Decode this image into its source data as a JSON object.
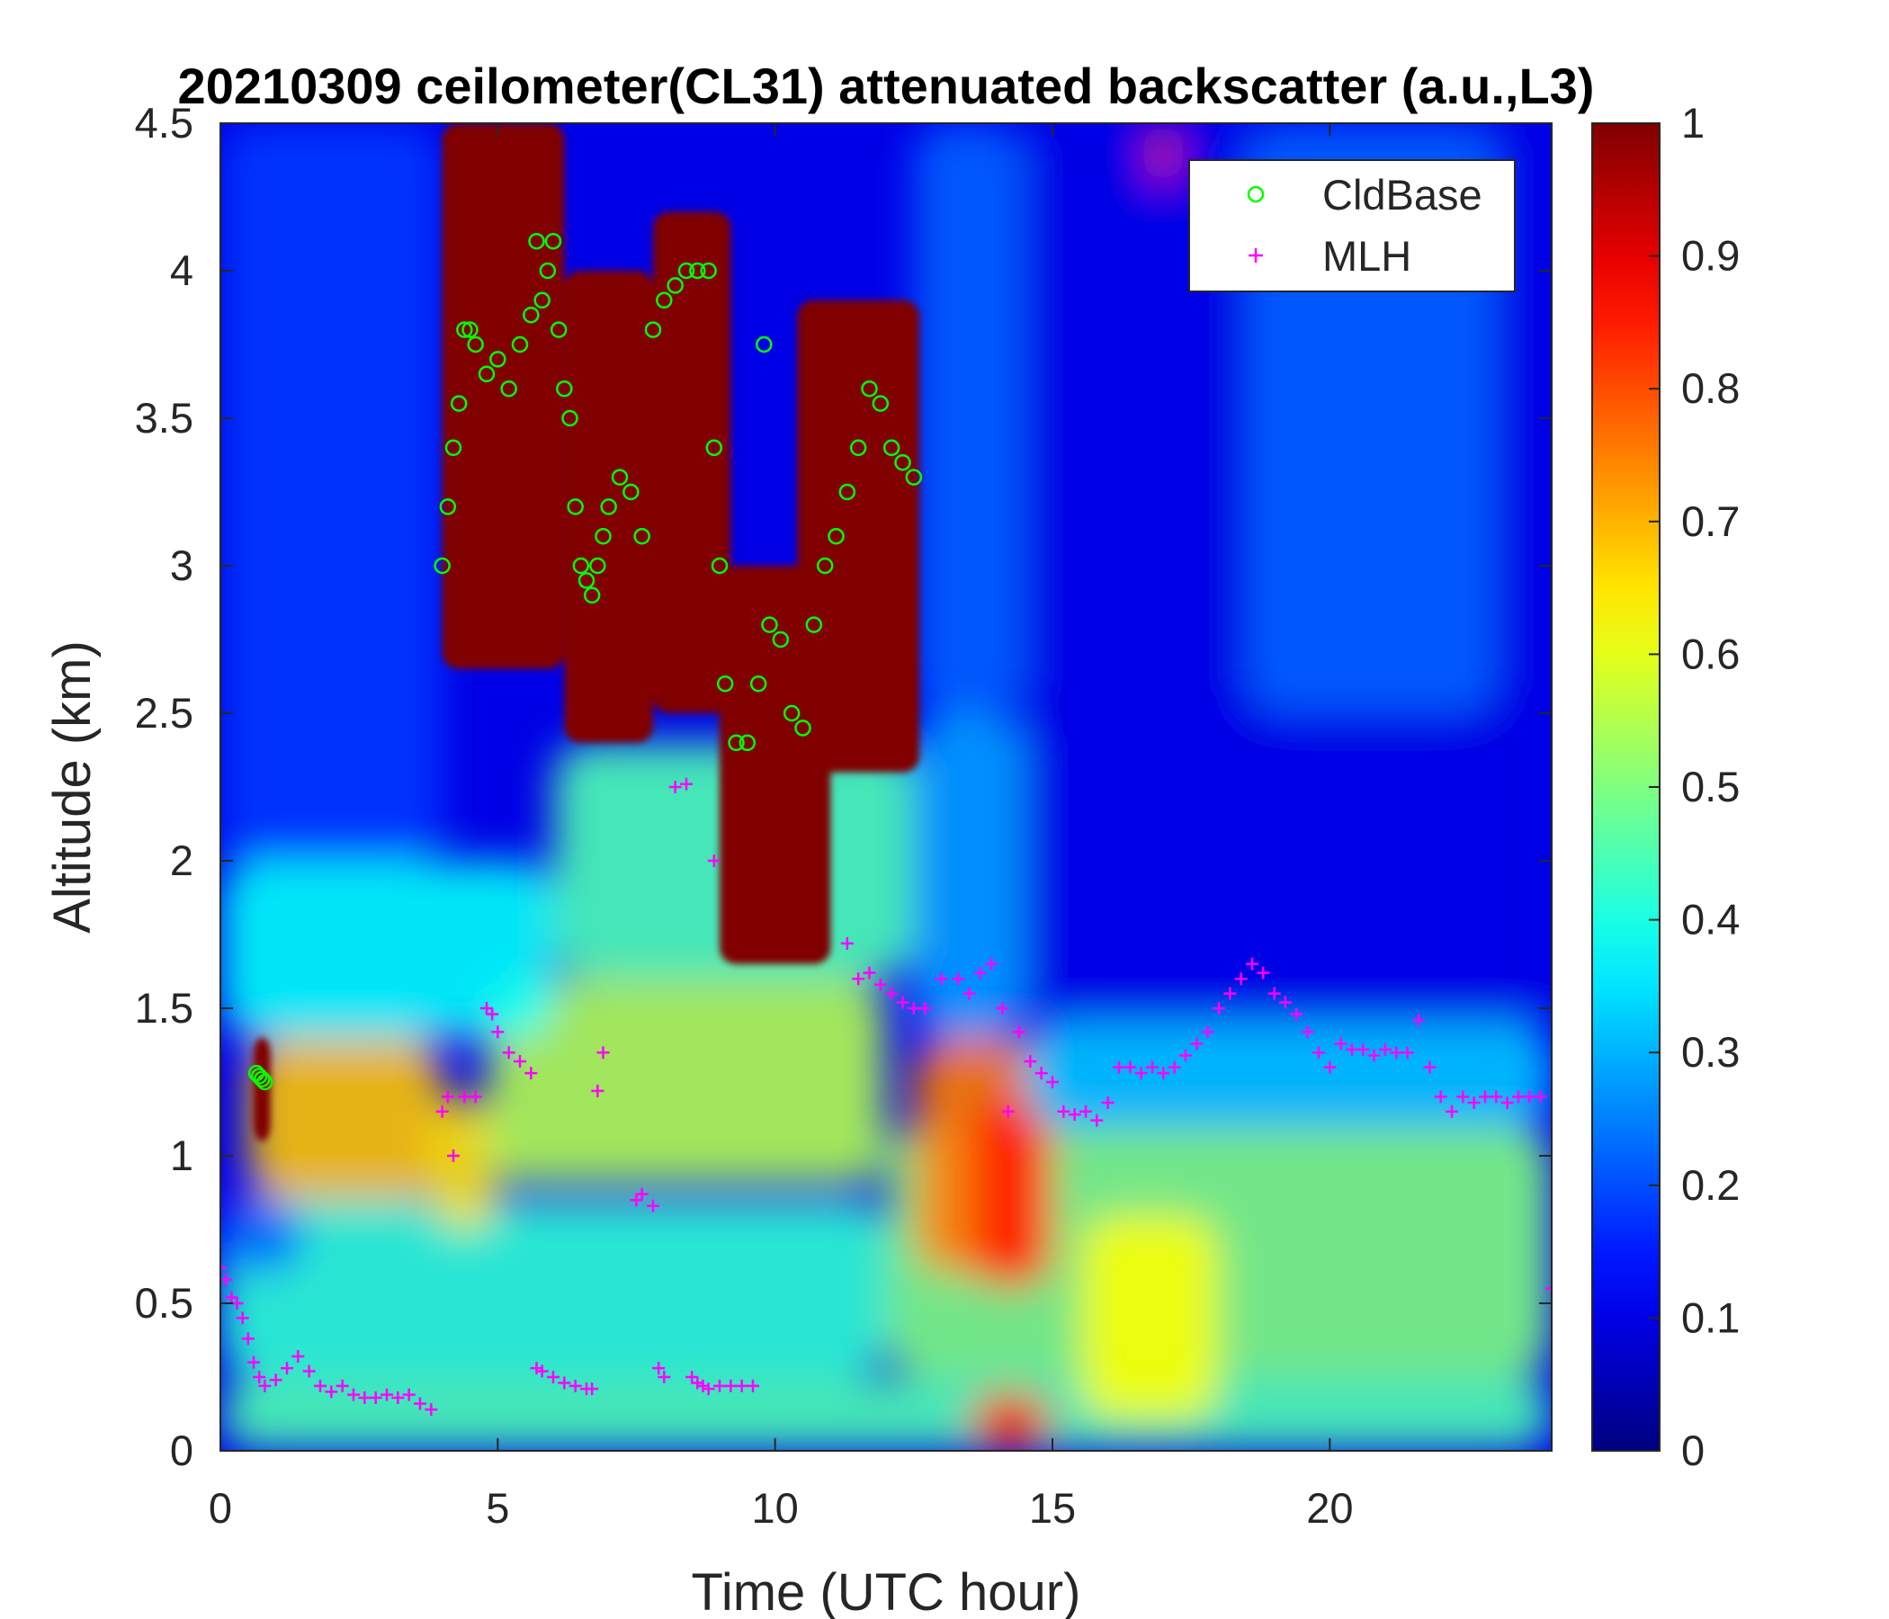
{
  "chart_data": {
    "type": "heatmap",
    "title": "20210309 ceilometer(CL31) attenuated backscatter (a.u.,L3)",
    "xlabel": "Time (UTC hour)",
    "ylabel": "Altitude (km)",
    "xlim": [
      0,
      24
    ],
    "ylim": [
      0,
      4.5
    ],
    "x_ticks": [
      0,
      5,
      10,
      15,
      20
    ],
    "x_tick_labels": [
      "0",
      "5",
      "10",
      "15",
      "20"
    ],
    "y_ticks": [
      0,
      0.5,
      1,
      1.5,
      2,
      2.5,
      3,
      3.5,
      4,
      4.5
    ],
    "y_tick_labels": [
      "0",
      "0.5",
      "1",
      "1.5",
      "2",
      "2.5",
      "3",
      "3.5",
      "4",
      "4.5"
    ],
    "colorbar": {
      "colormap": "jet",
      "range": [
        0,
        1
      ],
      "ticks": [
        0,
        0.1,
        0.2,
        0.3,
        0.4,
        0.5,
        0.6,
        0.7,
        0.8,
        0.9,
        1
      ],
      "tick_labels": [
        "0",
        "0.1",
        "0.2",
        "0.3",
        "0.4",
        "0.5",
        "0.6",
        "0.7",
        "0.8",
        "0.9",
        "1"
      ]
    },
    "grid": false,
    "legend": {
      "placement": "top-right",
      "entries": [
        {
          "label": "CldBase",
          "marker": "circle",
          "color": "#00ff00"
        },
        {
          "label": "MLH",
          "marker": "plus",
          "color": "#ff00ff"
        }
      ]
    },
    "features": [
      {
        "t0": 0,
        "t1": 24,
        "z0": 0,
        "z1": 0.25,
        "v": 0.45
      },
      {
        "t0": 0,
        "t1": 12,
        "z0": 0.25,
        "z1": 0.85,
        "v": 0.42
      },
      {
        "t0": 0,
        "t1": 1.5,
        "z0": 0.6,
        "z1": 0.85,
        "v": 0.22
      },
      {
        "t0": 12,
        "t1": 24,
        "z0": 0.25,
        "z1": 1.1,
        "v": 0.5
      },
      {
        "t0": 0.5,
        "t1": 4,
        "z0": 0.85,
        "z1": 1.4,
        "v": 0.68
      },
      {
        "t0": 3.8,
        "t1": 5,
        "z0": 0.75,
        "z1": 1.2,
        "v": 0.65
      },
      {
        "t0": 4.8,
        "t1": 12,
        "z0": 0.9,
        "z1": 1.6,
        "v": 0.55
      },
      {
        "t0": 12.5,
        "t1": 15,
        "z0": 0.6,
        "z1": 1.4,
        "v": 0.75
      },
      {
        "t0": 13.5,
        "t1": 15,
        "z0": 0.55,
        "z1": 1.2,
        "v": 0.85
      },
      {
        "t0": 13.5,
        "t1": 15,
        "z0": 0,
        "z1": 0.2,
        "v": 0.85
      },
      {
        "t0": 15.5,
        "t1": 18,
        "z0": 0.1,
        "z1": 0.8,
        "v": 0.62
      },
      {
        "t0": 0,
        "t1": 6,
        "z0": 1.4,
        "z1": 2.0,
        "v": 0.38
      },
      {
        "t0": 6,
        "t1": 12.5,
        "z0": 1.6,
        "z1": 2.4,
        "v": 0.45
      },
      {
        "t0": 12.5,
        "t1": 14.5,
        "z0": 1.4,
        "z1": 2.5,
        "v": 0.28
      },
      {
        "t0": 14.5,
        "t1": 24,
        "z0": 1.1,
        "z1": 1.45,
        "v": 0.32
      },
      {
        "t0": 0,
        "t1": 4,
        "z0": 2.0,
        "z1": 4.5,
        "v": 0.18
      },
      {
        "t0": 12.5,
        "t1": 14.5,
        "z0": 2.5,
        "z1": 4.5,
        "v": 0.22
      },
      {
        "t0": 14.5,
        "t1": 24,
        "z0": 1.45,
        "z1": 4.5,
        "v": 0.1
      },
      {
        "t0": 18.5,
        "t1": 23,
        "z0": 2.5,
        "z1": 4.5,
        "v": 0.22
      },
      {
        "t0": 0.6,
        "t1": 0.9,
        "z0": 1.05,
        "z1": 1.4,
        "v": 1.0
      },
      {
        "t0": 4,
        "t1": 6.2,
        "z0": 2.65,
        "z1": 4.5,
        "v": 1.0
      },
      {
        "t0": 6.2,
        "t1": 7.8,
        "z0": 2.4,
        "z1": 4.0,
        "v": 1.0
      },
      {
        "t0": 7.8,
        "t1": 9.2,
        "z0": 2.5,
        "z1": 4.2,
        "v": 1.0
      },
      {
        "t0": 9.0,
        "t1": 11,
        "z0": 1.65,
        "z1": 3.0,
        "v": 1.0
      },
      {
        "t0": 10.4,
        "t1": 12.6,
        "z0": 2.3,
        "z1": 3.9,
        "v": 1.0
      },
      {
        "t0": 16.8,
        "t1": 17.2,
        "z0": 4.3,
        "z1": 4.5,
        "v": 0.85
      }
    ],
    "series": [
      {
        "name": "CldBase",
        "marker": "circle",
        "color": "#00ff00",
        "x": [
          0.65,
          0.7,
          0.75,
          0.8,
          4.0,
          4.1,
          4.2,
          4.3,
          4.4,
          4.5,
          4.6,
          4.8,
          5.0,
          5.2,
          5.4,
          5.6,
          5.7,
          5.8,
          5.9,
          6.0,
          6.1,
          6.2,
          6.3,
          6.4,
          6.5,
          6.6,
          6.7,
          6.8,
          6.9,
          7.0,
          7.2,
          7.4,
          7.6,
          7.8,
          8.0,
          8.2,
          8.4,
          8.6,
          8.8,
          8.9,
          9.0,
          9.1,
          9.3,
          9.5,
          9.7,
          9.9,
          10.1,
          10.3,
          10.5,
          10.7,
          10.9,
          11.1,
          11.3,
          11.5,
          11.7,
          11.9,
          12.1,
          12.3,
          12.5,
          9.8
        ],
        "y": [
          1.28,
          1.27,
          1.26,
          1.25,
          3.0,
          3.2,
          3.4,
          3.55,
          3.8,
          3.8,
          3.75,
          3.65,
          3.7,
          3.6,
          3.75,
          3.85,
          4.1,
          3.9,
          4.0,
          4.1,
          3.8,
          3.6,
          3.5,
          3.2,
          3.0,
          2.95,
          2.9,
          3.0,
          3.1,
          3.2,
          3.3,
          3.25,
          3.1,
          3.8,
          3.9,
          3.95,
          4.0,
          4.0,
          4.0,
          3.4,
          3.0,
          2.6,
          2.4,
          2.4,
          2.6,
          2.8,
          2.75,
          2.5,
          2.45,
          2.8,
          3.0,
          3.1,
          3.25,
          3.4,
          3.6,
          3.55,
          3.4,
          3.35,
          3.3,
          3.75
        ]
      },
      {
        "name": "MLH",
        "marker": "plus",
        "color": "#ff00ff",
        "x": [
          0.0,
          0.1,
          0.2,
          0.3,
          0.4,
          0.5,
          0.6,
          0.7,
          0.8,
          1.0,
          1.2,
          1.4,
          1.6,
          1.8,
          2.0,
          2.2,
          2.4,
          2.6,
          2.8,
          3.0,
          3.2,
          3.4,
          3.6,
          3.8,
          4.0,
          4.1,
          4.2,
          4.4,
          4.6,
          4.8,
          4.9,
          5.0,
          5.2,
          5.4,
          5.6,
          5.7,
          5.8,
          6.0,
          6.2,
          6.4,
          6.6,
          6.7,
          6.8,
          6.9,
          7.5,
          7.6,
          7.8,
          7.9,
          8.0,
          8.2,
          8.4,
          8.5,
          8.6,
          8.7,
          8.8,
          8.9,
          9.0,
          9.2,
          9.4,
          9.6,
          11.3,
          11.5,
          11.7,
          11.9,
          12.1,
          12.3,
          12.5,
          12.7,
          13.0,
          13.3,
          13.5,
          13.7,
          13.9,
          14.1,
          14.2,
          14.4,
          14.6,
          14.8,
          15.0,
          15.2,
          15.4,
          15.6,
          15.8,
          16.0,
          16.2,
          16.4,
          16.6,
          16.8,
          17.0,
          17.2,
          17.4,
          17.6,
          17.8,
          18.0,
          18.2,
          18.4,
          18.6,
          18.8,
          19.0,
          19.2,
          19.4,
          19.6,
          19.8,
          20.0,
          20.2,
          20.4,
          20.6,
          20.8,
          21.0,
          21.2,
          21.4,
          21.6,
          21.8,
          22.0,
          22.2,
          22.4,
          22.6,
          22.8,
          23.0,
          23.2,
          23.4,
          23.6,
          23.8,
          24.0
        ],
        "y": [
          0.62,
          0.58,
          0.52,
          0.5,
          0.45,
          0.38,
          0.3,
          0.25,
          0.22,
          0.24,
          0.28,
          0.32,
          0.27,
          0.22,
          0.2,
          0.22,
          0.19,
          0.18,
          0.18,
          0.19,
          0.18,
          0.19,
          0.16,
          0.14,
          1.15,
          1.2,
          1.0,
          1.2,
          1.2,
          1.5,
          1.48,
          1.42,
          1.35,
          1.32,
          1.28,
          0.28,
          0.27,
          0.25,
          0.23,
          0.22,
          0.21,
          0.21,
          1.22,
          1.35,
          0.85,
          0.87,
          0.83,
          0.28,
          0.25,
          2.25,
          2.26,
          0.25,
          0.23,
          0.22,
          0.21,
          2.0,
          0.22,
          0.22,
          0.22,
          0.22,
          1.72,
          1.6,
          1.62,
          1.58,
          1.55,
          1.52,
          1.5,
          1.5,
          1.6,
          1.6,
          1.55,
          1.62,
          1.65,
          1.5,
          1.15,
          1.42,
          1.32,
          1.28,
          1.25,
          1.15,
          1.14,
          1.15,
          1.12,
          1.18,
          1.3,
          1.3,
          1.28,
          1.3,
          1.28,
          1.3,
          1.34,
          1.38,
          1.42,
          1.5,
          1.55,
          1.6,
          1.65,
          1.62,
          1.55,
          1.52,
          1.48,
          1.42,
          1.35,
          1.3,
          1.38,
          1.36,
          1.36,
          1.34,
          1.36,
          1.35,
          1.35,
          1.46,
          1.3,
          1.2,
          1.15,
          1.2,
          1.18,
          1.2,
          1.2,
          1.18,
          1.2,
          1.2,
          1.2,
          0.55
        ]
      }
    ]
  }
}
